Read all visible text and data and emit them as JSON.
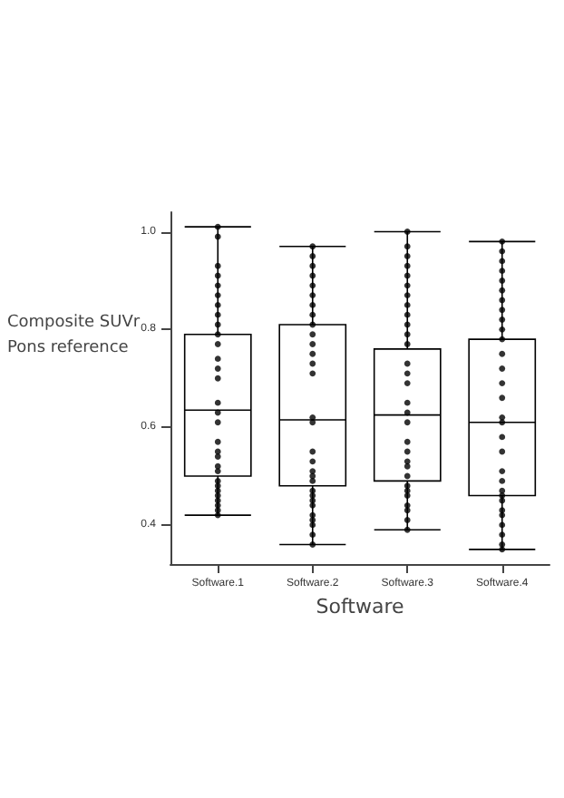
{
  "chart_data": {
    "type": "box",
    "xlabel": "Software",
    "ylabel": "Composite SUVr\nPons reference",
    "categories": [
      "Software.1",
      "Software.2",
      "Software.3",
      "Software.4"
    ],
    "boxes": [
      {
        "low": 0.42,
        "q1": 0.5,
        "median": 0.635,
        "q3": 0.79,
        "high": 1.01
      },
      {
        "low": 0.36,
        "q1": 0.48,
        "median": 0.615,
        "q3": 0.81,
        "high": 0.97
      },
      {
        "low": 0.39,
        "q1": 0.49,
        "median": 0.625,
        "q3": 0.76,
        "high": 1.0
      },
      {
        "low": 0.35,
        "q1": 0.46,
        "median": 0.61,
        "q3": 0.78,
        "high": 0.98
      }
    ],
    "color": "#000000",
    "series": [
      {
        "type": "scatter",
        "color": "#000000",
        "x": [
          "Software.1",
          "Software.1",
          "Software.1",
          "Software.1",
          "Software.1",
          "Software.1",
          "Software.1",
          "Software.1",
          "Software.1",
          "Software.1",
          "Software.1",
          "Software.1",
          "Software.1",
          "Software.1",
          "Software.1",
          "Software.1",
          "Software.1",
          "Software.1",
          "Software.1",
          "Software.1",
          "Software.1",
          "Software.1",
          "Software.1",
          "Software.1",
          "Software.1",
          "Software.1",
          "Software.1",
          "Software.1",
          "Software.1",
          "Software.1"
        ],
        "values": [
          1.01,
          0.99,
          0.93,
          0.91,
          0.89,
          0.87,
          0.85,
          0.83,
          0.81,
          0.79,
          0.77,
          0.74,
          0.72,
          0.7,
          0.65,
          0.63,
          0.61,
          0.57,
          0.55,
          0.54,
          0.52,
          0.51,
          0.49,
          0.48,
          0.47,
          0.46,
          0.45,
          0.44,
          0.43,
          0.42
        ]
      },
      {
        "type": "scatter",
        "color": "#000000",
        "x": [
          "Software.2",
          "Software.2",
          "Software.2",
          "Software.2",
          "Software.2",
          "Software.2",
          "Software.2",
          "Software.2",
          "Software.2",
          "Software.2",
          "Software.2",
          "Software.2",
          "Software.2",
          "Software.2",
          "Software.2",
          "Software.2",
          "Software.2",
          "Software.2",
          "Software.2",
          "Software.2",
          "Software.2",
          "Software.2",
          "Software.2",
          "Software.2",
          "Software.2",
          "Software.2",
          "Software.2",
          "Software.2",
          "Software.2",
          "Software.2"
        ],
        "values": [
          0.97,
          0.95,
          0.93,
          0.91,
          0.89,
          0.87,
          0.85,
          0.83,
          0.81,
          0.79,
          0.77,
          0.75,
          0.73,
          0.71,
          0.62,
          0.61,
          0.55,
          0.53,
          0.51,
          0.5,
          0.49,
          0.47,
          0.46,
          0.45,
          0.44,
          0.42,
          0.41,
          0.4,
          0.38,
          0.36
        ]
      },
      {
        "type": "scatter",
        "color": "#000000",
        "x": [
          "Software.3",
          "Software.3",
          "Software.3",
          "Software.3",
          "Software.3",
          "Software.3",
          "Software.3",
          "Software.3",
          "Software.3",
          "Software.3",
          "Software.3",
          "Software.3",
          "Software.3",
          "Software.3",
          "Software.3",
          "Software.3",
          "Software.3",
          "Software.3",
          "Software.3",
          "Software.3",
          "Software.3",
          "Software.3",
          "Software.3",
          "Software.3",
          "Software.3",
          "Software.3",
          "Software.3",
          "Software.3",
          "Software.3",
          "Software.3"
        ],
        "values": [
          1.0,
          0.97,
          0.95,
          0.93,
          0.91,
          0.89,
          0.87,
          0.85,
          0.83,
          0.81,
          0.79,
          0.77,
          0.73,
          0.71,
          0.69,
          0.65,
          0.63,
          0.61,
          0.57,
          0.55,
          0.53,
          0.52,
          0.5,
          0.48,
          0.47,
          0.46,
          0.44,
          0.43,
          0.41,
          0.39
        ]
      },
      {
        "type": "scatter",
        "color": "#000000",
        "x": [
          "Software.4",
          "Software.4",
          "Software.4",
          "Software.4",
          "Software.4",
          "Software.4",
          "Software.4",
          "Software.4",
          "Software.4",
          "Software.4",
          "Software.4",
          "Software.4",
          "Software.4",
          "Software.4",
          "Software.4",
          "Software.4",
          "Software.4",
          "Software.4",
          "Software.4",
          "Software.4",
          "Software.4",
          "Software.4",
          "Software.4",
          "Software.4",
          "Software.4",
          "Software.4",
          "Software.4",
          "Software.4",
          "Software.4",
          "Software.4"
        ],
        "values": [
          0.98,
          0.96,
          0.94,
          0.92,
          0.9,
          0.88,
          0.86,
          0.84,
          0.82,
          0.8,
          0.78,
          0.75,
          0.72,
          0.69,
          0.66,
          0.62,
          0.61,
          0.58,
          0.55,
          0.51,
          0.49,
          0.47,
          0.46,
          0.45,
          0.43,
          0.42,
          0.4,
          0.38,
          0.36,
          0.35
        ]
      }
    ],
    "ylim": [
      0.32,
      1.04
    ],
    "yticks": [
      {
        "value": 0.4,
        "label": "0.4"
      },
      {
        "value": 0.6,
        "label": "0.6"
      },
      {
        "value": 0.8,
        "label": "0.8"
      },
      {
        "value": 1.0,
        "label": "1.0"
      }
    ],
    "grid": false,
    "marker": "circle"
  }
}
